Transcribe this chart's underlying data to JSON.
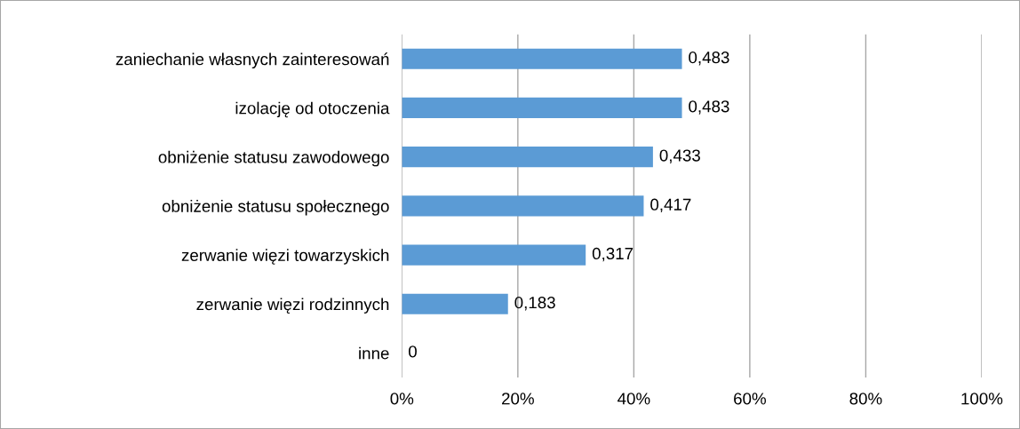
{
  "chart_data": {
    "type": "bar",
    "orientation": "horizontal",
    "categories": [
      "zaniechanie własnych zainteresowań",
      "izolację od otoczenia",
      "obniżenie statusu zawodowego",
      "obniżenie statusu społecznego",
      "zerwanie więzi towarzyskich",
      "zerwanie więzi rodzinnych",
      "inne"
    ],
    "values": [
      0.483,
      0.483,
      0.433,
      0.417,
      0.317,
      0.183,
      0
    ],
    "value_labels": [
      "0,483",
      "0,483",
      "0,433",
      "0,417",
      "0,317",
      "0,183",
      "0"
    ],
    "color": "#5b9bd5",
    "xlim": [
      0,
      1
    ],
    "xticks": [
      {
        "value": 0,
        "label": "0%"
      },
      {
        "value": 0.2,
        "label": "20%"
      },
      {
        "value": 0.4,
        "label": "40%"
      },
      {
        "value": 0.6,
        "label": "60%"
      },
      {
        "value": 0.8,
        "label": "80%"
      },
      {
        "value": 1,
        "label": "100%"
      }
    ],
    "grid": "x"
  }
}
